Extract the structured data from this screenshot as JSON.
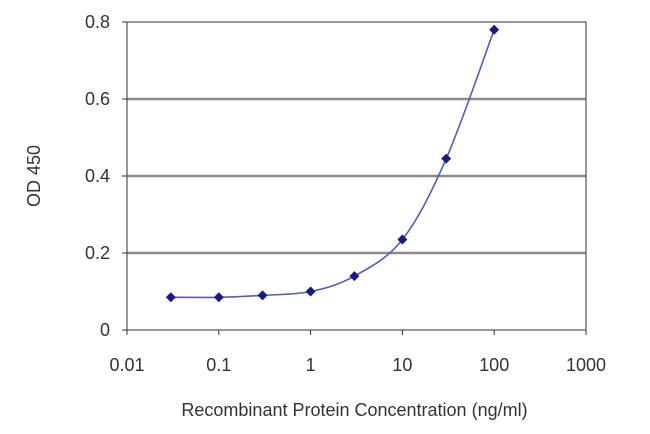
{
  "chart_data": {
    "type": "scatter",
    "title": "",
    "xlabel": "Recombinant Protein Concentration (ng/ml)",
    "ylabel": "OD 450",
    "xscale": "log",
    "xlim": [
      0.01,
      1000
    ],
    "ylim": [
      0,
      0.8
    ],
    "x_ticks": [
      0.01,
      0.1,
      1,
      10,
      100,
      1000
    ],
    "x_tick_labels": [
      "0.01",
      "0.1",
      "1",
      "10",
      "100",
      "1000"
    ],
    "y_ticks": [
      0,
      0.2,
      0.4,
      0.6,
      0.8
    ],
    "y_tick_labels": [
      "0",
      "0.2",
      "0.4",
      "0.6",
      "0.8"
    ],
    "grid": "horizontal",
    "legend": "none",
    "series": [
      {
        "x": [
          0.03,
          0.1,
          0.3,
          1,
          3,
          10,
          30,
          100
        ],
        "y": [
          0.085,
          0.085,
          0.09,
          0.1,
          0.14,
          0.235,
          0.445,
          0.78
        ],
        "fit_curve": true
      }
    ],
    "colors": {
      "marker": "#1a1a80",
      "curve": "#4f5fbf",
      "grid": "#8c8c8c",
      "axis": "#333333"
    }
  }
}
